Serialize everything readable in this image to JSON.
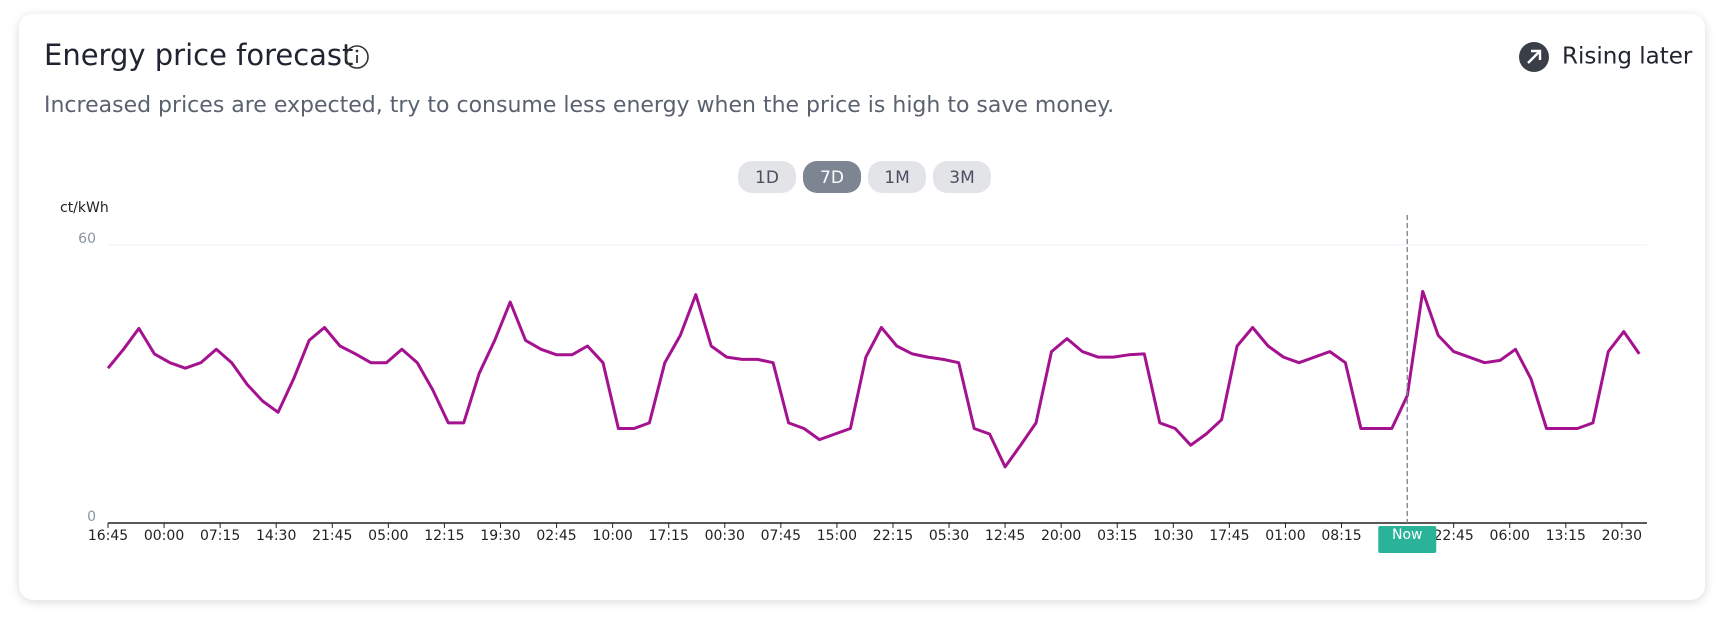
{
  "header": {
    "title": "Energy price forecast",
    "subtitle": "Increased prices are expected, try to consume less energy when the price is high to save money.",
    "status": "Rising later"
  },
  "ranges": {
    "options": [
      "1D",
      "7D",
      "1M",
      "3M"
    ],
    "selected": "7D"
  },
  "chart_data": {
    "type": "line",
    "y_label": "ct/kWh",
    "color": "#a4128f",
    "grid": true,
    "x": [
      0,
      2,
      4,
      6,
      8,
      10,
      12,
      14,
      16,
      18,
      20,
      22,
      24,
      26,
      28,
      30,
      32,
      34,
      36,
      38,
      40,
      42,
      44,
      46,
      48,
      50,
      52,
      54,
      56,
      58,
      60,
      62,
      64,
      66,
      68,
      70,
      72,
      74,
      76,
      78,
      80,
      82,
      84,
      86,
      88,
      90,
      92,
      94,
      96,
      98,
      100,
      102,
      104,
      106,
      108,
      110,
      112,
      114,
      116,
      118,
      120,
      122,
      124,
      126,
      128,
      130,
      132,
      134,
      136,
      138,
      140,
      142,
      144,
      146,
      148,
      150,
      152,
      154,
      156,
      158,
      160,
      162,
      164,
      166,
      168,
      170,
      172,
      174,
      176,
      178,
      180,
      182,
      184,
      186,
      188,
      190,
      192,
      194,
      196,
      198
    ],
    "values": [
      33.4,
      37.5,
      42,
      36.5,
      34.6,
      33.4,
      34.6,
      37.5,
      34.6,
      29.9,
      26.3,
      23.9,
      31.1,
      39.4,
      42.2,
      38.2,
      36.5,
      34.6,
      34.6,
      37.5,
      34.6,
      28.7,
      21.6,
      21.6,
      32.3,
      39.4,
      47.7,
      39.4,
      37.5,
      36.3,
      36.3,
      38.2,
      34.6,
      20.4,
      20.4,
      21.6,
      34.6,
      40.5,
      49.3,
      38.2,
      35.8,
      35.3,
      35.3,
      34.6,
      21.6,
      20.4,
      18.0,
      19.2,
      20.4,
      35.8,
      42.2,
      38.2,
      36.5,
      35.8,
      35.3,
      34.6,
      20.4,
      19.2,
      12.1,
      16.8,
      21.6,
      37.0,
      39.8,
      37.0,
      35.8,
      35.8,
      36.3,
      36.5,
      21.6,
      20.4,
      16.8,
      19.2,
      22.3,
      38.2,
      42.2,
      38.2,
      35.8,
      34.6,
      35.8,
      37.0,
      34.6,
      20.4,
      20.4,
      20.4,
      27.5,
      50.0,
      40.5,
      37.0,
      35.8,
      34.6,
      35.1,
      37.5,
      31.1,
      20.4,
      20.4,
      20.4,
      21.6,
      37.0,
      41.3,
      36.5
    ],
    "xlim": [
      0,
      199
    ],
    "ylim": [
      0,
      60
    ],
    "yticks": [
      0,
      60
    ],
    "xticks": [
      {
        "value": 0,
        "label": "16:45"
      },
      {
        "value": 7.25,
        "label": "00:00"
      },
      {
        "value": 14.5,
        "label": "07:15"
      },
      {
        "value": 21.75,
        "label": "14:30"
      },
      {
        "value": 29,
        "label": "21:45"
      },
      {
        "value": 36.25,
        "label": "05:00"
      },
      {
        "value": 43.5,
        "label": "12:15"
      },
      {
        "value": 50.75,
        "label": "19:30"
      },
      {
        "value": 58,
        "label": "02:45"
      },
      {
        "value": 65.25,
        "label": "10:00"
      },
      {
        "value": 72.5,
        "label": "17:15"
      },
      {
        "value": 79.75,
        "label": "00:30"
      },
      {
        "value": 87,
        "label": "07:45"
      },
      {
        "value": 94.25,
        "label": "15:00"
      },
      {
        "value": 101.5,
        "label": "22:15"
      },
      {
        "value": 108.75,
        "label": "05:30"
      },
      {
        "value": 116,
        "label": "12:45"
      },
      {
        "value": 123.25,
        "label": "20:00"
      },
      {
        "value": 130.5,
        "label": "03:15"
      },
      {
        "value": 137.75,
        "label": "10:30"
      },
      {
        "value": 145,
        "label": "17:45"
      },
      {
        "value": 152.25,
        "label": "01:00"
      },
      {
        "value": 159.5,
        "label": "08:15"
      },
      {
        "value": 174,
        "label": "22:45"
      },
      {
        "value": 181.25,
        "label": "06:00"
      },
      {
        "value": 188.5,
        "label": "13:15"
      },
      {
        "value": 195.75,
        "label": "20:30"
      }
    ],
    "now": {
      "x": 168,
      "label": "Now"
    }
  }
}
